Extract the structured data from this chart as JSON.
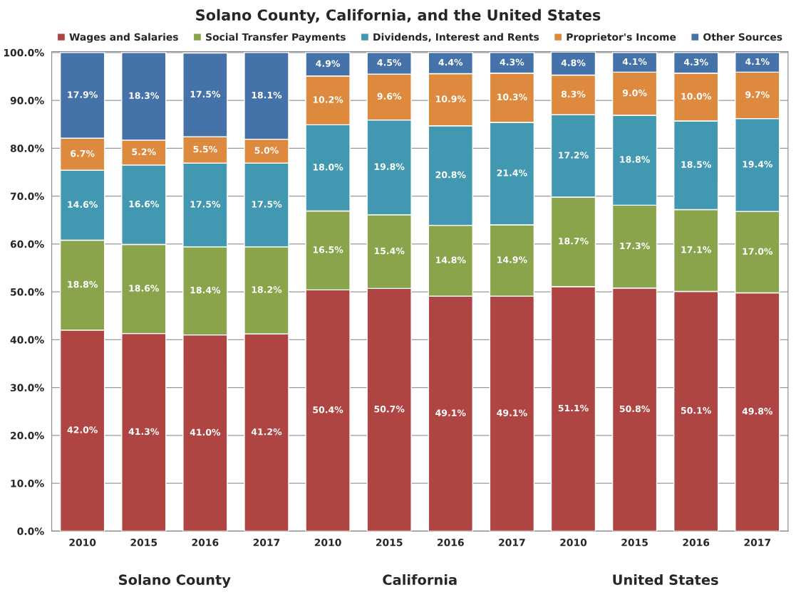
{
  "chart_data": {
    "type": "bar",
    "stacked": true,
    "title": "Solano County, California, and the United States",
    "categories": [
      "2010",
      "2015",
      "2016",
      "2017",
      "2010",
      "2015",
      "2016",
      "2017",
      "2010",
      "2015",
      "2016",
      "2017"
    ],
    "series": [
      {
        "name": "Wages and Salaries",
        "color": "#ae4543",
        "values": [
          42.0,
          41.3,
          41.0,
          41.2,
          50.4,
          50.7,
          49.1,
          49.1,
          51.1,
          50.8,
          50.1,
          49.8
        ],
        "value_labels": [
          "42.0%",
          "41.3%",
          "41.0%",
          "41.2%",
          "50.4%",
          "50.7%",
          "49.1%",
          "49.1%",
          "51.1%",
          "50.8%",
          "50.1%",
          "49.8%"
        ]
      },
      {
        "name": "Social Transfer Payments",
        "color": "#89a44a",
        "values": [
          18.8,
          18.6,
          18.4,
          18.2,
          16.5,
          15.4,
          14.8,
          14.9,
          18.7,
          17.3,
          17.1,
          17.0
        ],
        "value_labels": [
          "18.8%",
          "18.6%",
          "18.4%",
          "18.2%",
          "16.5%",
          "15.4%",
          "14.8%",
          "14.9%",
          "18.7%",
          "17.3%",
          "17.1%",
          "17.0%"
        ]
      },
      {
        "name": "Dividends, Interest and Rents",
        "color": "#4298b0",
        "values": [
          14.6,
          16.6,
          17.5,
          17.5,
          18.0,
          19.8,
          20.8,
          21.4,
          17.2,
          18.8,
          18.5,
          19.4
        ],
        "value_labels": [
          "14.6%",
          "16.6%",
          "17.5%",
          "17.5%",
          "18.0%",
          "19.8%",
          "20.8%",
          "21.4%",
          "17.2%",
          "18.8%",
          "18.5%",
          "19.4%"
        ]
      },
      {
        "name": "Proprietor's Income",
        "color": "#dd8a3e",
        "values": [
          6.7,
          5.2,
          5.5,
          5.0,
          10.2,
          9.6,
          10.9,
          10.3,
          8.3,
          9.0,
          10.0,
          9.7
        ],
        "value_labels": [
          "6.7%",
          "5.2%",
          "5.5%",
          "5.0%",
          "10.2%",
          "9.6%",
          "10.9%",
          "10.3%",
          "8.3%",
          "9.0%",
          "10.0%",
          "9.7%"
        ]
      },
      {
        "name": "Other Sources",
        "color": "#4572a8",
        "values": [
          17.9,
          18.3,
          17.5,
          18.1,
          4.9,
          4.5,
          4.4,
          4.3,
          4.8,
          4.1,
          4.3,
          4.1
        ],
        "value_labels": [
          "17.9%",
          "18.3%",
          "17.5%",
          "18.1%",
          "4.9%",
          "4.5%",
          "4.4%",
          "4.3%",
          "4.8%",
          "4.1%",
          "4.3%",
          "4.1%"
        ]
      }
    ],
    "ylim": [
      0,
      100.2
    ],
    "yticks": [
      {
        "value": 0,
        "label": "0.0%"
      },
      {
        "value": 10,
        "label": "10.0%"
      },
      {
        "value": 20,
        "label": "20.0%"
      },
      {
        "value": 30,
        "label": "30.0%"
      },
      {
        "value": 40,
        "label": "40.0%"
      },
      {
        "value": 50,
        "label": "50.0%"
      },
      {
        "value": 60,
        "label": "60.0%"
      },
      {
        "value": 70,
        "label": "70.0%"
      },
      {
        "value": 80,
        "label": "80.0%"
      },
      {
        "value": 90,
        "label": "90.0%"
      },
      {
        "value": 100,
        "label": "100.0%"
      }
    ],
    "grid": "y",
    "legend": "top",
    "annotations": [
      "Solano County",
      "California",
      "United States"
    ]
  }
}
